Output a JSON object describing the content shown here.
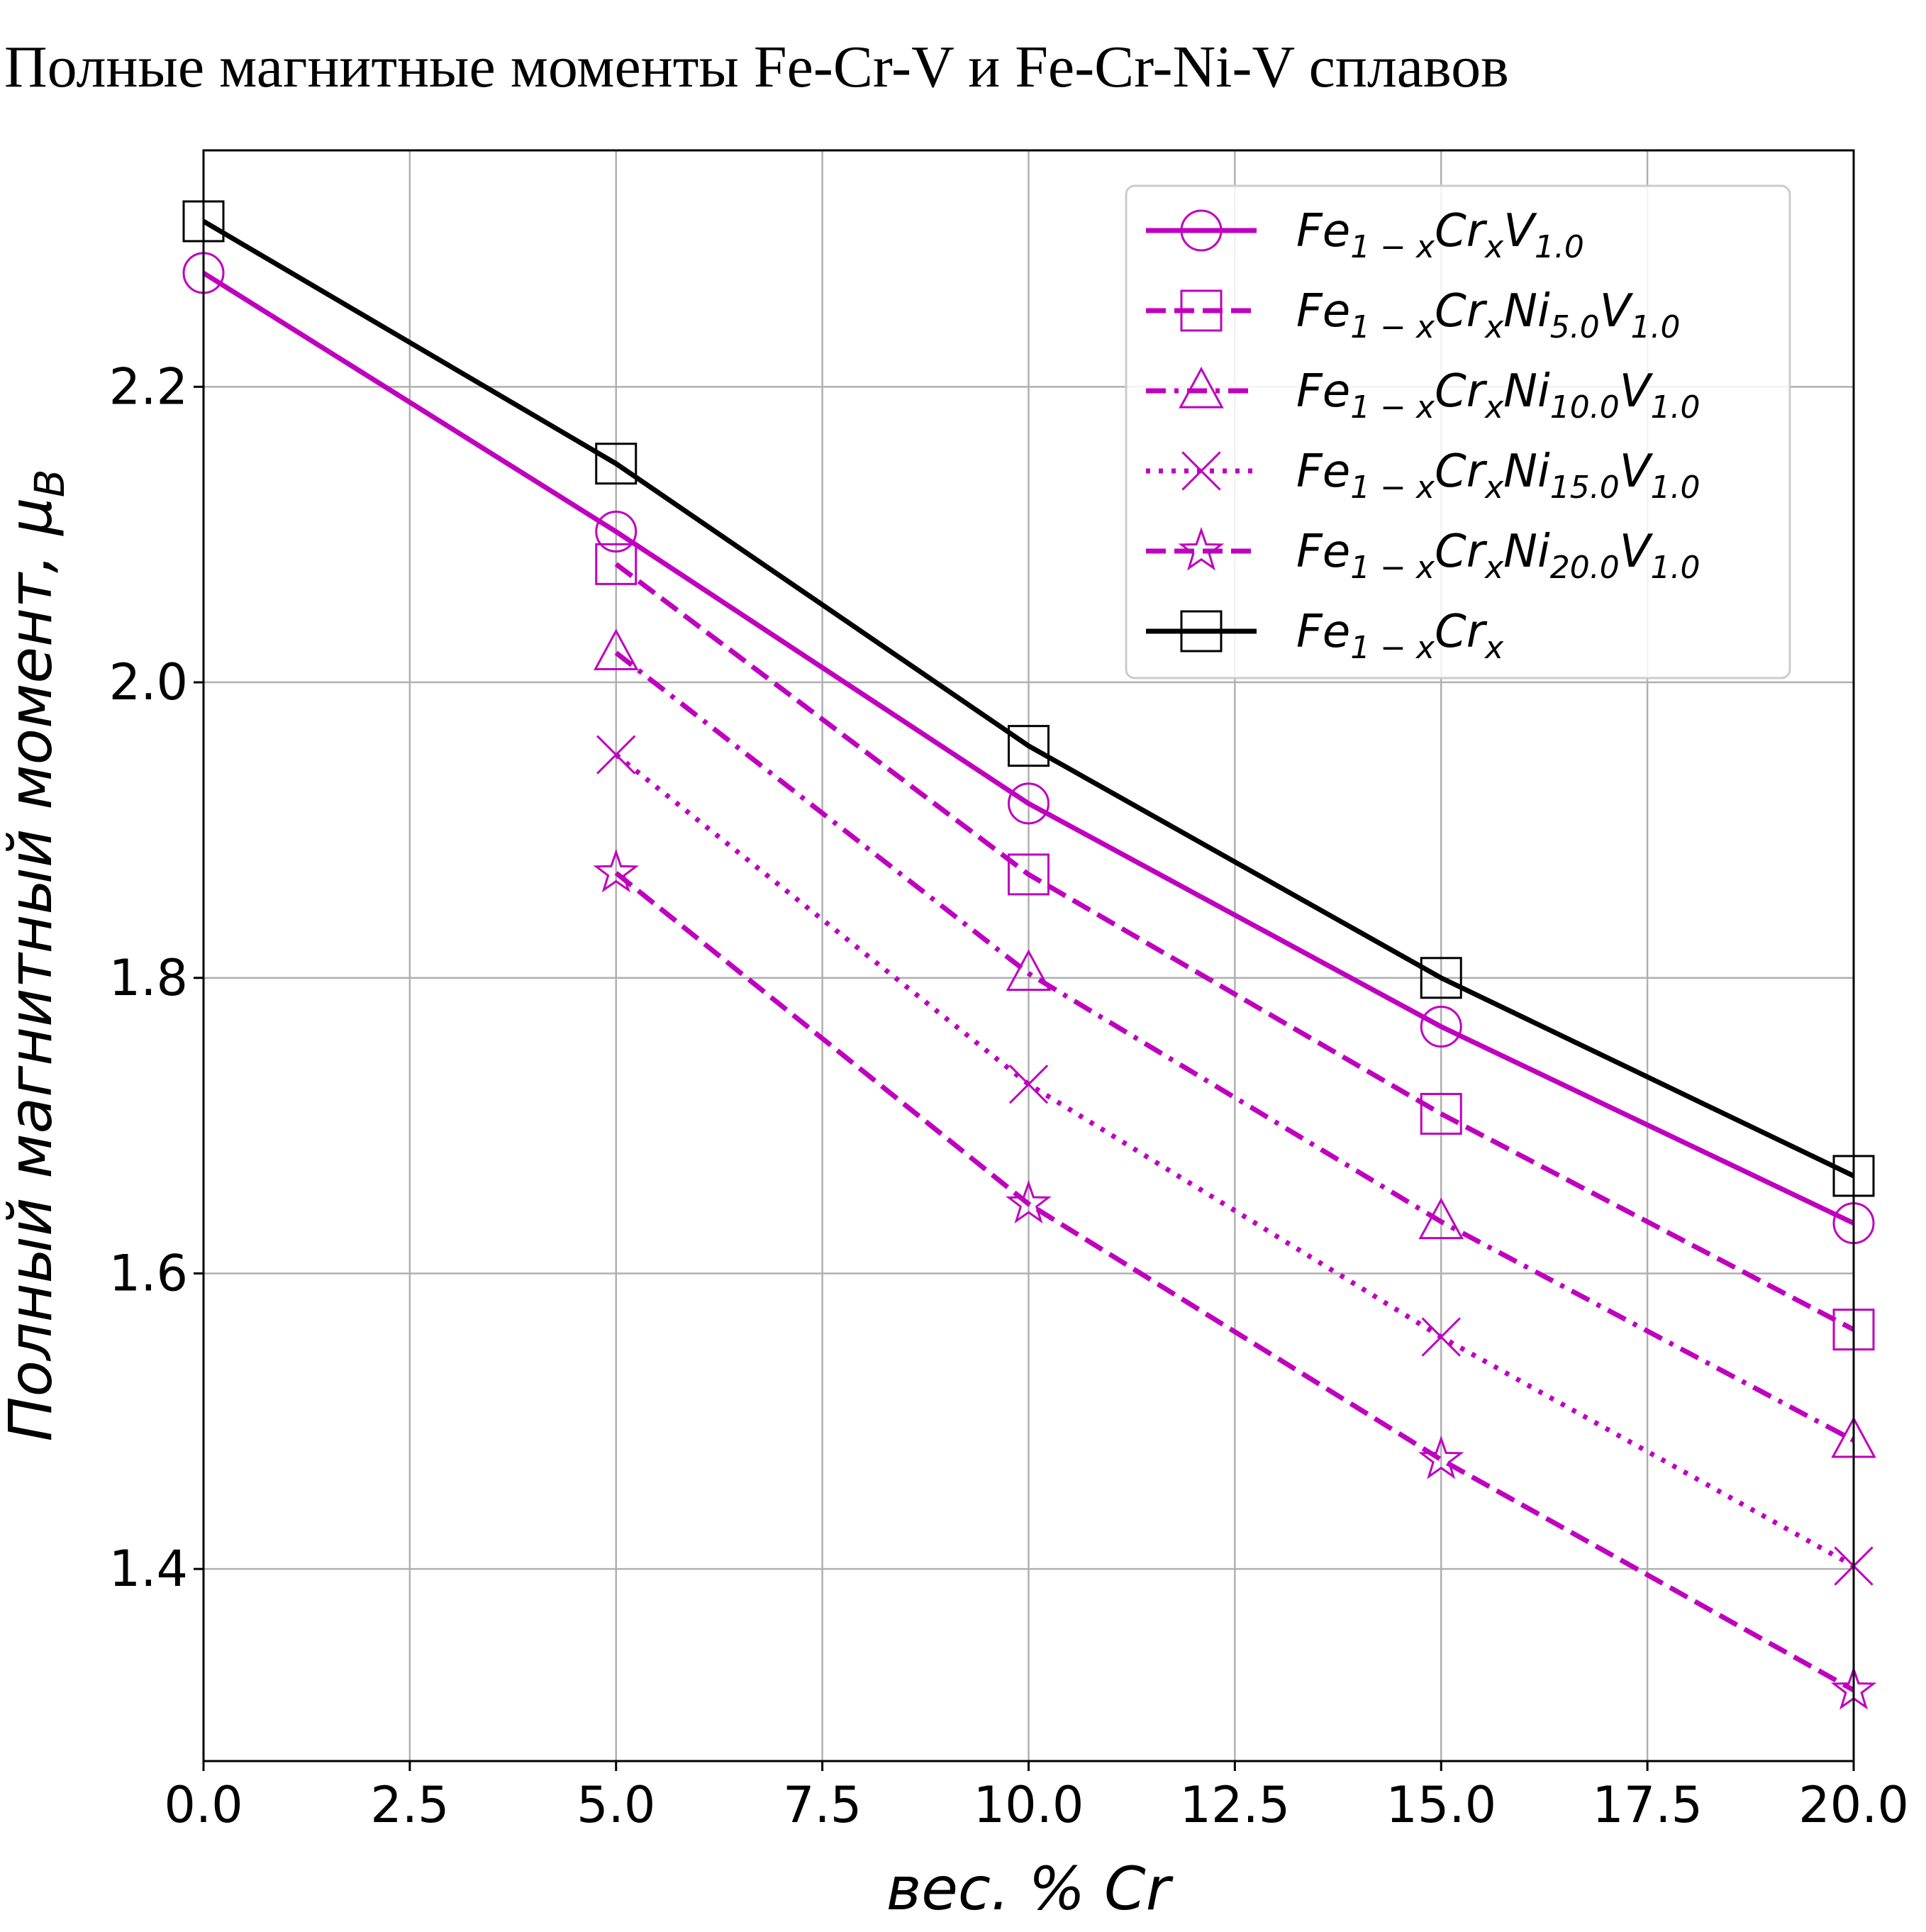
{
  "chart_data": {
    "type": "line",
    "title": "Полные магнитные моменты Fe-Cr-V и Fe-Cr-Ni-V сплавов",
    "xlabel": "вес. % Cr",
    "ylabel": "Полный магнитный момент, μ_B",
    "ylabel_main": "Полный магнитный момент, ",
    "ylabel_mu": "μ",
    "ylabel_sub": "B",
    "xlim": [
      0.0,
      20.0
    ],
    "ylim": [
      1.27,
      2.36
    ],
    "xticks": [
      0.0,
      2.5,
      5.0,
      7.5,
      10.0,
      12.5,
      15.0,
      17.5,
      20.0
    ],
    "xtick_labels": [
      "0.0",
      "2.5",
      "5.0",
      "7.5",
      "10.0",
      "12.5",
      "15.0",
      "17.5",
      "20.0"
    ],
    "yticks": [
      1.4,
      1.6,
      1.8,
      2.0,
      2.2
    ],
    "ytick_labels": [
      "1.4",
      "1.6",
      "1.8",
      "2.0",
      "2.2"
    ],
    "grid": true,
    "legend_position": "top-right",
    "series": [
      {
        "name": "Fe1−xCrxV1.0",
        "legend_parts": [
          [
            "Fe",
            ""
          ],
          [
            "1 − x",
            "sub"
          ],
          [
            "Cr",
            ""
          ],
          [
            "x",
            "sub"
          ],
          [
            "V",
            ""
          ],
          [
            "1.0",
            "sub"
          ]
        ],
        "color": "#bf00bf",
        "dash": "solid",
        "marker": "circle",
        "x": [
          0,
          5,
          10,
          15,
          20
        ],
        "y": [
          2.277,
          2.102,
          1.918,
          1.767,
          1.634
        ]
      },
      {
        "name": "Fe1−xCrxNi5.0V1.0",
        "legend_parts": [
          [
            "Fe",
            ""
          ],
          [
            "1 − x",
            "sub"
          ],
          [
            "Cr",
            ""
          ],
          [
            "x",
            "sub"
          ],
          [
            "Ni",
            ""
          ],
          [
            "5.0",
            "sub"
          ],
          [
            "V",
            ""
          ],
          [
            "1.0",
            "sub"
          ]
        ],
        "color": "#bf00bf",
        "dash": "dashed",
        "marker": "square",
        "x": [
          5,
          10,
          15,
          20
        ],
        "y": [
          2.08,
          1.87,
          1.708,
          1.562
        ]
      },
      {
        "name": "Fe1−xCrxNi10.0V1.0",
        "legend_parts": [
          [
            "Fe",
            ""
          ],
          [
            "1 − x",
            "sub"
          ],
          [
            "Cr",
            ""
          ],
          [
            "x",
            "sub"
          ],
          [
            "Ni",
            ""
          ],
          [
            "10.0",
            "sub"
          ],
          [
            "V",
            ""
          ],
          [
            "1.0",
            "sub"
          ]
        ],
        "color": "#bf00bf",
        "dash": "dashdot",
        "marker": "triangle",
        "x": [
          5,
          10,
          15,
          20
        ],
        "y": [
          2.02,
          1.803,
          1.635,
          1.487
        ]
      },
      {
        "name": "Fe1−xCrxNi15.0V1.0",
        "legend_parts": [
          [
            "Fe",
            ""
          ],
          [
            "1 − x",
            "sub"
          ],
          [
            "Cr",
            ""
          ],
          [
            "x",
            "sub"
          ],
          [
            "Ni",
            ""
          ],
          [
            "15.0",
            "sub"
          ],
          [
            "V",
            ""
          ],
          [
            "1.0",
            "sub"
          ]
        ],
        "color": "#bf00bf",
        "dash": "dotted",
        "marker": "x",
        "x": [
          5,
          10,
          15,
          20
        ],
        "y": [
          1.951,
          1.728,
          1.557,
          1.402
        ]
      },
      {
        "name": "Fe1−xCrxNi20.0V1.0",
        "legend_parts": [
          [
            "Fe",
            ""
          ],
          [
            "1 − x",
            "sub"
          ],
          [
            "Cr",
            ""
          ],
          [
            "x",
            "sub"
          ],
          [
            "Ni",
            ""
          ],
          [
            "20.0",
            "sub"
          ],
          [
            "V",
            ""
          ],
          [
            "1.0",
            "sub"
          ]
        ],
        "color": "#bf00bf",
        "dash": "dashed",
        "marker": "star",
        "x": [
          5,
          10,
          15,
          20
        ],
        "y": [
          1.871,
          1.647,
          1.474,
          1.318
        ]
      },
      {
        "name": "Fe1−xCrx",
        "legend_parts": [
          [
            "Fe",
            ""
          ],
          [
            "1 − x",
            "sub"
          ],
          [
            "Cr",
            ""
          ],
          [
            "x",
            "sub"
          ]
        ],
        "color": "#000000",
        "dash": "solid",
        "marker": "square",
        "x": [
          0,
          5,
          10,
          15,
          20
        ],
        "y": [
          2.312,
          2.148,
          1.957,
          1.8,
          1.666
        ]
      }
    ]
  }
}
